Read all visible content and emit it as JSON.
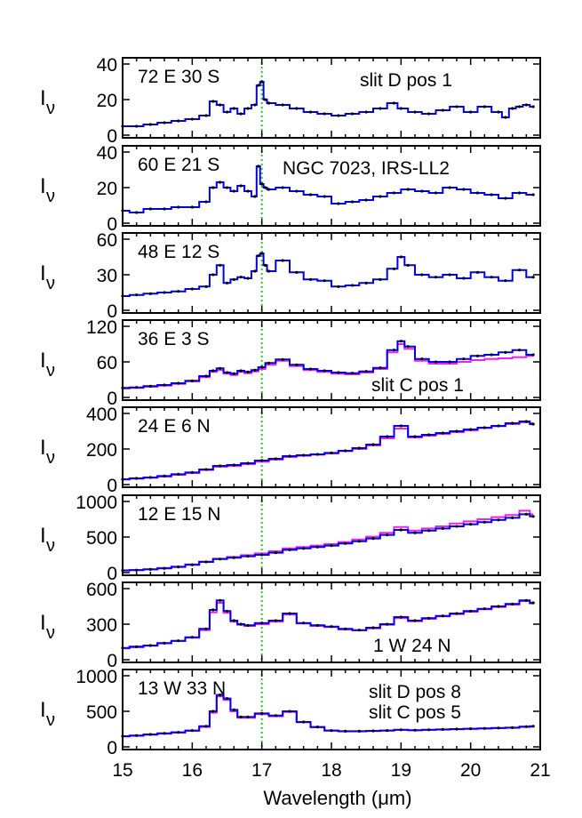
{
  "xaxis": {
    "label": "Wavelength (μm)",
    "range": [
      15,
      21
    ],
    "ticks": [
      15,
      16,
      17,
      18,
      19,
      20,
      21
    ],
    "tick_labels": [
      "15",
      "16",
      "17",
      "18",
      "19",
      "20",
      "21"
    ]
  },
  "ylabel": {
    "main": "I",
    "sub": "ν"
  },
  "marker_line": {
    "x": 17.0,
    "color": "#22cc22"
  },
  "colors": {
    "slit_d": "#0000dd",
    "slit_c": "#ee22ee",
    "title": "#ee0000",
    "points": "#000000"
  },
  "panels": [
    {
      "position_label": "72 E 30 S",
      "ylim": [
        0,
        40
      ],
      "yticks": [
        0,
        20,
        40
      ],
      "ytick_labels": [
        "0",
        "20",
        "40"
      ],
      "annotation": "slit D pos 1",
      "annotation_color": "#0000dd",
      "blue_x": [
        15.0,
        15.2,
        15.4,
        15.6,
        15.8,
        16.0,
        16.2,
        16.3,
        16.4,
        16.5,
        16.6,
        16.7,
        16.8,
        16.9,
        16.95,
        17.0,
        17.05,
        17.1,
        17.3,
        17.5,
        17.7,
        17.9,
        18.1,
        18.3,
        18.5,
        18.7,
        18.9,
        19.0,
        19.2,
        19.4,
        19.6,
        19.8,
        20.0,
        20.2,
        20.4,
        20.5,
        20.6,
        20.7,
        20.8,
        20.9
      ],
      "blue_y": [
        5,
        5,
        6,
        7,
        8,
        9,
        11,
        19,
        17,
        13,
        15,
        12,
        15,
        17,
        28,
        30,
        20,
        18,
        17,
        15,
        13,
        12,
        11,
        12,
        13,
        15,
        18,
        15,
        13,
        12,
        14,
        16,
        13,
        16,
        13,
        10,
        15,
        16,
        17,
        16
      ],
      "magenta_x": [],
      "magenta_y": []
    },
    {
      "position_label": "60 E 21 S",
      "ylim": [
        0,
        40
      ],
      "yticks": [
        0,
        20,
        40
      ],
      "ytick_labels": [
        "0",
        "20",
        "40"
      ],
      "annotation": "NGC 7023, IRS-LL2",
      "annotation_color": "#ee0000",
      "blue_x": [
        15.0,
        15.2,
        15.4,
        15.6,
        15.8,
        16.0,
        16.2,
        16.3,
        16.4,
        16.5,
        16.6,
        16.7,
        16.8,
        16.9,
        16.95,
        17.0,
        17.05,
        17.1,
        17.3,
        17.5,
        17.7,
        17.9,
        18.1,
        18.3,
        18.5,
        18.7,
        18.9,
        19.1,
        19.3,
        19.5,
        19.7,
        19.9,
        20.1,
        20.3,
        20.5,
        20.7,
        20.9
      ],
      "blue_y": [
        7,
        6,
        8,
        8,
        9,
        9,
        12,
        20,
        23,
        20,
        18,
        21,
        18,
        15,
        32,
        22,
        20,
        19,
        20,
        18,
        16,
        15,
        11,
        12,
        13,
        15,
        17,
        19,
        18,
        17,
        20,
        19,
        17,
        16,
        14,
        17,
        16
      ],
      "magenta_x": [],
      "magenta_y": []
    },
    {
      "position_label": "48 E 12 S",
      "ylim": [
        0,
        60
      ],
      "yticks": [
        0,
        30,
        60
      ],
      "ytick_labels": [
        "0",
        "30",
        "60"
      ],
      "annotation": "",
      "annotation_color": "#0000dd",
      "blue_x": [
        15.0,
        15.2,
        15.4,
        15.6,
        15.8,
        16.0,
        16.2,
        16.3,
        16.4,
        16.5,
        16.6,
        16.7,
        16.8,
        16.9,
        16.95,
        17.0,
        17.05,
        17.1,
        17.3,
        17.5,
        17.7,
        17.9,
        18.1,
        18.3,
        18.5,
        18.7,
        18.9,
        19.0,
        19.1,
        19.3,
        19.5,
        19.7,
        19.9,
        20.1,
        20.3,
        20.5,
        20.7,
        20.9
      ],
      "blue_y": [
        12,
        13,
        14,
        15,
        16,
        18,
        20,
        30,
        38,
        23,
        26,
        28,
        27,
        33,
        46,
        48,
        38,
        33,
        42,
        32,
        26,
        25,
        20,
        21,
        23,
        26,
        35,
        45,
        38,
        30,
        28,
        30,
        27,
        32,
        28,
        25,
        34,
        28
      ],
      "magenta_x": [],
      "magenta_y": []
    },
    {
      "position_label": "36 E 3 S",
      "ylim": [
        0,
        120
      ],
      "yticks": [
        0,
        60,
        120
      ],
      "ytick_labels": [
        "0",
        "60",
        "120"
      ],
      "annotation": "slit C pos 1",
      "annotation_color": "#ee22ee",
      "blue_x": [
        15.0,
        15.2,
        15.4,
        15.6,
        15.8,
        16.0,
        16.2,
        16.3,
        16.4,
        16.5,
        16.6,
        16.7,
        16.8,
        16.9,
        17.0,
        17.1,
        17.3,
        17.5,
        17.7,
        17.9,
        18.1,
        18.3,
        18.5,
        18.7,
        18.9,
        19.0,
        19.1,
        19.3,
        19.5,
        19.7,
        19.9,
        20.1,
        20.3,
        20.5,
        20.7,
        20.9
      ],
      "blue_y": [
        16,
        17,
        19,
        21,
        24,
        28,
        36,
        45,
        49,
        42,
        40,
        45,
        43,
        46,
        51,
        58,
        64,
        55,
        48,
        45,
        42,
        41,
        44,
        50,
        80,
        95,
        86,
        65,
        60,
        60,
        65,
        70,
        72,
        76,
        80,
        72
      ],
      "magenta_x": [
        15.0,
        15.2,
        15.4,
        15.6,
        15.8,
        16.0,
        16.2,
        16.3,
        16.4,
        16.5,
        16.6,
        16.7,
        16.8,
        16.9,
        17.0,
        17.1,
        17.3,
        17.5,
        17.7,
        17.9,
        18.1,
        18.3,
        18.5,
        18.7,
        18.9,
        19.0,
        19.1,
        19.3,
        19.5,
        19.7,
        19.9,
        20.1,
        20.3,
        20.5,
        20.7,
        20.9
      ],
      "magenta_y": [
        15,
        16,
        18,
        20,
        23,
        27,
        34,
        43,
        46,
        40,
        38,
        43,
        41,
        44,
        48,
        55,
        62,
        53,
        46,
        43,
        40,
        39,
        42,
        48,
        76,
        90,
        82,
        62,
        57,
        57,
        60,
        63,
        65,
        66,
        68,
        70
      ]
    },
    {
      "position_label": "24 E 6 N",
      "ylim": [
        0,
        400
      ],
      "yticks": [
        0,
        200,
        400
      ],
      "ytick_labels": [
        "0",
        "200",
        "400"
      ],
      "annotation": "",
      "annotation_color": "#0000dd",
      "blue_x": [
        15.0,
        15.2,
        15.4,
        15.6,
        15.8,
        16.0,
        16.2,
        16.4,
        16.6,
        16.8,
        17.0,
        17.2,
        17.4,
        17.6,
        17.8,
        18.0,
        18.2,
        18.4,
        18.6,
        18.8,
        19.0,
        19.2,
        19.4,
        19.6,
        19.8,
        20.0,
        20.2,
        20.4,
        20.6,
        20.8,
        20.9
      ],
      "blue_y": [
        30,
        35,
        40,
        48,
        58,
        68,
        85,
        105,
        110,
        120,
        135,
        145,
        160,
        165,
        170,
        178,
        190,
        205,
        225,
        270,
        330,
        270,
        280,
        290,
        300,
        310,
        320,
        330,
        345,
        355,
        340
      ],
      "magenta_x": [
        15.0,
        15.2,
        15.4,
        15.6,
        15.8,
        16.0,
        16.2,
        16.4,
        16.6,
        16.8,
        17.0,
        17.2,
        17.4,
        17.6,
        17.8,
        18.0,
        18.2,
        18.4,
        18.6,
        18.8,
        19.0,
        19.2,
        19.4,
        19.6,
        19.8,
        20.0,
        20.2,
        20.4,
        20.6,
        20.8,
        20.9
      ],
      "magenta_y": [
        28,
        33,
        38,
        45,
        55,
        65,
        82,
        100,
        105,
        115,
        128,
        140,
        155,
        162,
        168,
        175,
        188,
        200,
        220,
        260,
        315,
        265,
        275,
        285,
        295,
        305,
        318,
        328,
        340,
        350,
        345
      ]
    },
    {
      "position_label": "12 E 15 N",
      "ylim": [
        0,
        1000
      ],
      "yticks": [
        0,
        500,
        1000
      ],
      "ytick_labels": [
        "0",
        "500",
        "1000"
      ],
      "annotation": "",
      "annotation_color": "#0000dd",
      "blue_x": [
        15.0,
        15.2,
        15.4,
        15.6,
        15.8,
        16.0,
        16.2,
        16.4,
        16.6,
        16.8,
        17.0,
        17.2,
        17.4,
        17.6,
        17.8,
        18.0,
        18.2,
        18.4,
        18.6,
        18.8,
        19.0,
        19.2,
        19.4,
        19.6,
        19.8,
        20.0,
        20.2,
        20.4,
        20.6,
        20.8,
        20.9
      ],
      "blue_y": [
        30,
        35,
        45,
        60,
        80,
        110,
        150,
        190,
        210,
        230,
        250,
        280,
        320,
        340,
        360,
        380,
        410,
        440,
        480,
        530,
        600,
        560,
        590,
        620,
        650,
        680,
        710,
        740,
        770,
        820,
        790
      ],
      "magenta_x": [
        15.0,
        15.2,
        15.4,
        15.6,
        15.8,
        16.0,
        16.2,
        16.4,
        16.6,
        16.8,
        17.0,
        17.2,
        17.4,
        17.6,
        17.8,
        18.0,
        18.2,
        18.4,
        18.6,
        18.8,
        19.0,
        19.2,
        19.4,
        19.6,
        19.8,
        20.0,
        20.2,
        20.4,
        20.6,
        20.8,
        20.9
      ],
      "magenta_y": [
        32,
        38,
        48,
        65,
        85,
        115,
        155,
        195,
        220,
        245,
        270,
        300,
        340,
        360,
        380,
        400,
        430,
        465,
        505,
        560,
        640,
        590,
        620,
        650,
        690,
        720,
        750,
        780,
        810,
        870,
        820
      ]
    },
    {
      "position_label": "1 W 24 N",
      "ylim": [
        0,
        600
      ],
      "yticks": [
        0,
        300,
        600
      ],
      "ytick_labels": [
        "0",
        "300",
        "600"
      ],
      "annotation": "",
      "annotation_color": "#0000dd",
      "blue_x": [
        15.0,
        15.2,
        15.4,
        15.6,
        15.8,
        16.0,
        16.2,
        16.3,
        16.4,
        16.5,
        16.6,
        16.7,
        16.8,
        17.0,
        17.2,
        17.4,
        17.6,
        17.8,
        18.0,
        18.2,
        18.4,
        18.6,
        18.8,
        19.0,
        19.2,
        19.4,
        19.6,
        19.8,
        20.0,
        20.2,
        20.4,
        20.6,
        20.8,
        20.9
      ],
      "blue_y": [
        100,
        110,
        120,
        140,
        160,
        190,
        260,
        420,
        500,
        410,
        330,
        300,
        290,
        310,
        330,
        390,
        310,
        290,
        280,
        260,
        250,
        270,
        300,
        360,
        330,
        350,
        370,
        390,
        410,
        430,
        450,
        470,
        500,
        480
      ],
      "magenta_x": [
        15.0,
        15.2,
        15.4,
        15.6,
        15.8,
        16.0,
        16.2,
        16.3,
        16.4,
        16.5,
        16.6,
        16.7,
        16.8,
        17.0,
        17.2,
        17.4,
        17.6,
        17.8,
        18.0,
        18.2,
        18.4,
        18.6,
        18.8,
        19.0,
        19.2,
        19.4,
        19.6,
        19.8,
        20.0,
        20.2,
        20.4,
        20.6,
        20.8,
        20.9
      ],
      "magenta_y": [
        95,
        105,
        118,
        138,
        158,
        185,
        250,
        400,
        480,
        395,
        320,
        295,
        285,
        300,
        320,
        380,
        305,
        285,
        275,
        255,
        248,
        265,
        295,
        350,
        325,
        345,
        365,
        385,
        405,
        425,
        445,
        465,
        495,
        475
      ]
    },
    {
      "position_label": "13 W 33 N",
      "ylim": [
        0,
        1000
      ],
      "yticks": [
        0,
        500,
        1000
      ],
      "ytick_labels": [
        "0",
        "500",
        "1000"
      ],
      "annotation": "slit D pos 8",
      "annotation_color": "#0000dd",
      "annotation2": "slit C pos 5",
      "annotation2_color": "#ee22ee",
      "blue_x": [
        15.0,
        15.2,
        15.4,
        15.6,
        15.8,
        16.0,
        16.2,
        16.3,
        16.4,
        16.5,
        16.6,
        16.7,
        16.8,
        17.0,
        17.2,
        17.4,
        17.6,
        17.8,
        18.0,
        18.2,
        18.4,
        18.6,
        18.8,
        19.0,
        19.2,
        19.4,
        19.6,
        19.8,
        20.0,
        20.2,
        20.4,
        20.6,
        20.8,
        20.9
      ],
      "blue_y": [
        150,
        160,
        175,
        190,
        205,
        230,
        290,
        500,
        730,
        680,
        520,
        420,
        420,
        470,
        440,
        500,
        350,
        280,
        230,
        220,
        220,
        225,
        230,
        240,
        235,
        240,
        245,
        250,
        255,
        260,
        265,
        270,
        285,
        290
      ],
      "magenta_x": [
        15.0,
        15.2,
        15.4,
        15.6,
        15.8,
        16.0,
        16.2,
        16.3,
        16.4,
        16.5,
        16.6,
        16.7,
        16.8,
        17.0,
        17.2,
        17.4,
        17.6,
        17.8,
        18.0,
        18.2,
        18.4,
        18.6,
        18.8,
        19.0,
        19.2,
        19.4,
        19.6,
        19.8,
        20.0,
        20.2,
        20.4,
        20.6,
        20.8,
        20.9
      ],
      "magenta_y": [
        145,
        155,
        170,
        185,
        200,
        225,
        280,
        480,
        710,
        660,
        500,
        410,
        410,
        460,
        430,
        490,
        345,
        275,
        228,
        218,
        218,
        222,
        228,
        238,
        233,
        238,
        243,
        248,
        253,
        258,
        263,
        268,
        280,
        285
      ]
    }
  ]
}
